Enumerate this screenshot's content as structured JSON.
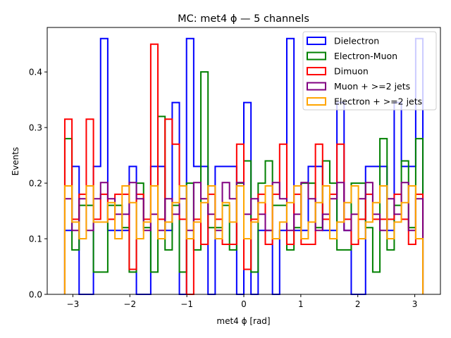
{
  "chart_data": {
    "type": "step-histogram",
    "title": "MC: met4 ϕ — 5 channels",
    "xlabel": "met4 ϕ [rad]",
    "ylabel": "Events",
    "xlim": [
      -3.45,
      3.45
    ],
    "ylim": [
      0.0,
      0.48
    ],
    "xticks": [
      -3,
      -2,
      -1,
      0,
      1,
      2,
      3
    ],
    "xtick_labels": [
      "−3",
      "−2",
      "−1",
      "0",
      "1",
      "2",
      "3"
    ],
    "yticks": [
      0.0,
      0.1,
      0.2,
      0.3,
      0.4
    ],
    "ytick_labels": [
      "0.0",
      "0.1",
      "0.2",
      "0.3",
      "0.4"
    ],
    "legend_position": "upper right",
    "bin_range": [
      -3.1416,
      3.1416
    ],
    "n_bins": 50,
    "series": [
      {
        "name": "Dielectron",
        "color": "#0000ff",
        "values": [
          0.115,
          0.23,
          0.0,
          0.0,
          0.23,
          0.46,
          0.115,
          0.115,
          0.115,
          0.23,
          0.0,
          0.0,
          0.23,
          0.23,
          0.115,
          0.345,
          0.0,
          0.46,
          0.23,
          0.23,
          0.0,
          0.23,
          0.23,
          0.23,
          0.0,
          0.345,
          0.0,
          0.115,
          0.115,
          0.0,
          0.115,
          0.46,
          0.115,
          0.115,
          0.23,
          0.23,
          0.115,
          0.115,
          0.345,
          0.115,
          0.0,
          0.0,
          0.23,
          0.23,
          0.23,
          0.115,
          0.345,
          0.23,
          0.23,
          0.46
        ]
      },
      {
        "name": "Electron-Muon",
        "color": "#008000",
        "values": [
          0.28,
          0.08,
          0.16,
          0.16,
          0.04,
          0.04,
          0.16,
          0.16,
          0.12,
          0.04,
          0.2,
          0.12,
          0.04,
          0.32,
          0.08,
          0.16,
          0.04,
          0.2,
          0.08,
          0.4,
          0.12,
          0.12,
          0.16,
          0.08,
          0.2,
          0.24,
          0.04,
          0.2,
          0.24,
          0.16,
          0.16,
          0.08,
          0.12,
          0.2,
          0.2,
          0.12,
          0.24,
          0.2,
          0.08,
          0.08,
          0.2,
          0.2,
          0.12,
          0.04,
          0.28,
          0.08,
          0.16,
          0.24,
          0.12,
          0.28
        ]
      },
      {
        "name": "Dimuon",
        "color": "#ff0000",
        "values": [
          0.315,
          0.135,
          0.18,
          0.315,
          0.135,
          0.18,
          0.135,
          0.18,
          0.18,
          0.045,
          0.18,
          0.135,
          0.45,
          0.135,
          0.315,
          0.27,
          0.135,
          0.0,
          0.135,
          0.09,
          0.18,
          0.135,
          0.09,
          0.09,
          0.27,
          0.045,
          0.135,
          0.18,
          0.09,
          0.18,
          0.27,
          0.09,
          0.18,
          0.09,
          0.09,
          0.27,
          0.135,
          0.18,
          0.27,
          0.135,
          0.09,
          0.135,
          0.18,
          0.135,
          0.135,
          0.135,
          0.18,
          0.135,
          0.09,
          0.18
        ]
      },
      {
        "name": "Muon + >=2 jets",
        "color": "#800080",
        "values": [
          0.172,
          0.115,
          0.172,
          0.115,
          0.172,
          0.201,
          0.172,
          0.144,
          0.144,
          0.201,
          0.172,
          0.115,
          0.144,
          0.115,
          0.172,
          0.144,
          0.172,
          0.115,
          0.201,
          0.172,
          0.144,
          0.115,
          0.201,
          0.172,
          0.201,
          0.144,
          0.172,
          0.144,
          0.115,
          0.201,
          0.172,
          0.115,
          0.144,
          0.201,
          0.172,
          0.115,
          0.144,
          0.172,
          0.201,
          0.115,
          0.144,
          0.172,
          0.201,
          0.144,
          0.115,
          0.172,
          0.144,
          0.201,
          0.115,
          0.172
        ]
      },
      {
        "name": "Electron + >=2 jets",
        "color": "#ffa500",
        "values": [
          0.195,
          0.13,
          0.1,
          0.195,
          0.13,
          0.13,
          0.165,
          0.1,
          0.195,
          0.165,
          0.1,
          0.13,
          0.195,
          0.1,
          0.13,
          0.165,
          0.195,
          0.1,
          0.13,
          0.165,
          0.195,
          0.1,
          0.165,
          0.13,
          0.195,
          0.1,
          0.13,
          0.165,
          0.195,
          0.1,
          0.13,
          0.165,
          0.195,
          0.1,
          0.13,
          0.165,
          0.195,
          0.1,
          0.13,
          0.165,
          0.195,
          0.1,
          0.13,
          0.165,
          0.195,
          0.1,
          0.13,
          0.165,
          0.195,
          0.1
        ]
      }
    ]
  }
}
